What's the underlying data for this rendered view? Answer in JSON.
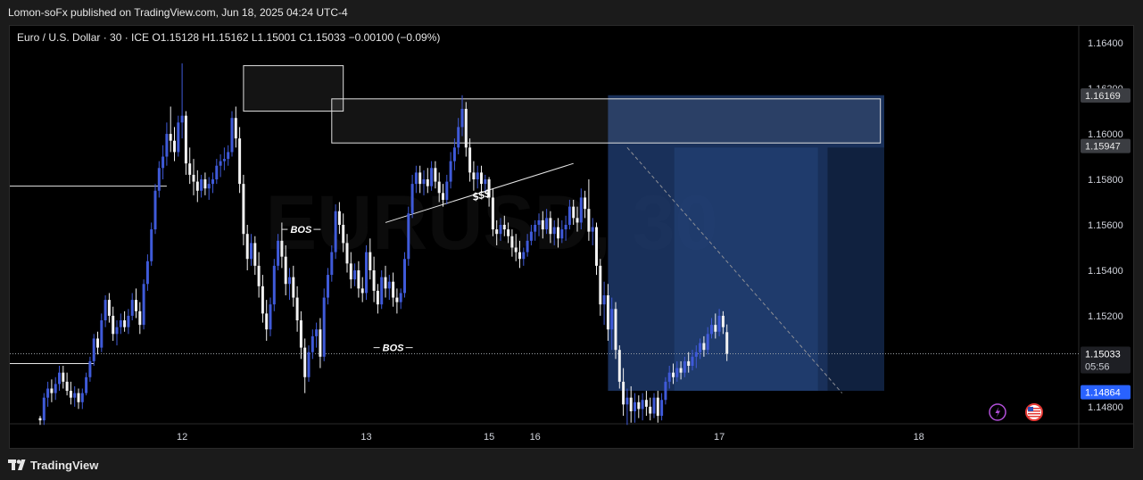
{
  "header": {
    "published_text": "Lomon-soFx published on TradingView.com, Jun 18, 2025 04:24 UTC-4"
  },
  "legend": {
    "symbol": "Euro / U.S. Dollar · 30 · ICE",
    "open": "O1.15128",
    "high": "H1.15162",
    "low": "L1.15001",
    "close": "C1.15033",
    "change": "−0.00100 (−0.09%)"
  },
  "watermark": "EURUSD, 30",
  "footer": {
    "brand": "TradingView"
  },
  "colors": {
    "bull": "#3f5ad9",
    "bear": "#f2f2f2",
    "background": "#000000",
    "zone": "#1e3a6e",
    "accent": "#2962ff"
  },
  "chart_data": {
    "type": "candlestick",
    "interval": "30",
    "y_axis": {
      "ticks": [
        1.164,
        1.162,
        1.16,
        1.158,
        1.156,
        1.154,
        1.152,
        1.148
      ],
      "tick_labels": [
        "1.16400",
        "1.16200",
        "1.16000",
        "1.15800",
        "1.15600",
        "1.15400",
        "1.15200",
        "1.14800"
      ],
      "range": [
        1.14725,
        1.16475
      ]
    },
    "x_axis": {
      "labels": [
        "12",
        "13",
        "15",
        "16",
        "17",
        "18"
      ],
      "label_bars": [
        37,
        85,
        117,
        129,
        177,
        229
      ]
    },
    "price_labels": [
      {
        "text": "1.16169",
        "value": 1.16169,
        "style": "grey"
      },
      {
        "text": "1.15947",
        "value": 1.15947,
        "style": "grey"
      },
      {
        "text": "1.15033",
        "value": 1.15033,
        "style": "current",
        "countdown": "05:56"
      },
      {
        "text": "1.14864",
        "value": 1.14864,
        "style": "blue"
      }
    ],
    "annotations": [
      {
        "type": "text",
        "text": "BOS",
        "bar": 68,
        "value": 1.1558
      },
      {
        "type": "text",
        "text": "BOS",
        "bar": 92,
        "value": 1.1506
      },
      {
        "type": "text",
        "text": "$$$",
        "bar": 115,
        "value": 1.1573
      },
      {
        "type": "trendline",
        "from": {
          "bar": 90,
          "value": 1.1561
        },
        "to": {
          "bar": 139,
          "value": 1.1587
        }
      },
      {
        "type": "trendline",
        "style": "dashed",
        "from": {
          "bar": 153,
          "value": 1.1594
        },
        "to": {
          "bar": 209,
          "value": 1.1486
        }
      },
      {
        "type": "rectangle",
        "from_bar": 53,
        "to_bar": 79,
        "top": 1.163,
        "bottom": 1.161
      },
      {
        "type": "rectangle",
        "from_bar": 76,
        "to_bar": 219,
        "top": 1.16154,
        "bottom": 1.1596
      },
      {
        "type": "zone",
        "from_bar": 148,
        "to_bar": 220,
        "top": 1.1617,
        "bottom": 1.1487
      },
      {
        "type": "hline",
        "from_bar": 0,
        "to_bar": 33,
        "value": 1.1577
      },
      {
        "type": "hline",
        "from_bar": 0,
        "to_bar": 14,
        "value": 1.1499
      },
      {
        "type": "hline",
        "style": "dotted",
        "from_bar": 0,
        "to_bar": 255,
        "value": 1.15033
      }
    ],
    "candles": [
      [
        1.1475,
        1.1476,
        1.1472,
        1.1474
      ],
      [
        1.1474,
        1.1486,
        1.1472,
        1.1484
      ],
      [
        1.1484,
        1.1491,
        1.148,
        1.1488
      ],
      [
        1.1488,
        1.1492,
        1.1482,
        1.1486
      ],
      [
        1.1486,
        1.1493,
        1.1483,
        1.149
      ],
      [
        1.149,
        1.1498,
        1.1487,
        1.1495
      ],
      [
        1.1495,
        1.1498,
        1.1488,
        1.1491
      ],
      [
        1.1491,
        1.1495,
        1.1485,
        1.1487
      ],
      [
        1.1487,
        1.1491,
        1.1481,
        1.1484
      ],
      [
        1.1484,
        1.1489,
        1.148,
        1.1486
      ],
      [
        1.1486,
        1.1488,
        1.1479,
        1.1482
      ],
      [
        1.1482,
        1.1488,
        1.1479,
        1.1486
      ],
      [
        1.1486,
        1.1495,
        1.1485,
        1.1493
      ],
      [
        1.1493,
        1.1502,
        1.1491,
        1.15
      ],
      [
        1.15,
        1.1512,
        1.1498,
        1.151
      ],
      [
        1.151,
        1.1513,
        1.1503,
        1.1506
      ],
      [
        1.1506,
        1.1521,
        1.1504,
        1.1518
      ],
      [
        1.1518,
        1.1529,
        1.1515,
        1.1527
      ],
      [
        1.1527,
        1.153,
        1.1517,
        1.152
      ],
      [
        1.152,
        1.1524,
        1.1509,
        1.1512
      ],
      [
        1.1512,
        1.1518,
        1.1507,
        1.1515
      ],
      [
        1.1515,
        1.1521,
        1.1512,
        1.1518
      ],
      [
        1.1518,
        1.1522,
        1.1513,
        1.1515
      ],
      [
        1.1515,
        1.1523,
        1.1512,
        1.152
      ],
      [
        1.152,
        1.153,
        1.1518,
        1.1527
      ],
      [
        1.1527,
        1.1532,
        1.1519,
        1.1522
      ],
      [
        1.1522,
        1.1526,
        1.1512,
        1.1516
      ],
      [
        1.1516,
        1.1536,
        1.1514,
        1.1534
      ],
      [
        1.1534,
        1.1547,
        1.1531,
        1.1544
      ],
      [
        1.1544,
        1.1561,
        1.1542,
        1.1558
      ],
      [
        1.1558,
        1.1578,
        1.1556,
        1.1575
      ],
      [
        1.1575,
        1.1588,
        1.1572,
        1.1585
      ],
      [
        1.1585,
        1.1595,
        1.158,
        1.159
      ],
      [
        1.159,
        1.1605,
        1.1586,
        1.16
      ],
      [
        1.16,
        1.1612,
        1.1592,
        1.1597
      ],
      [
        1.1597,
        1.1603,
        1.1588,
        1.1592
      ],
      [
        1.1592,
        1.1608,
        1.159,
        1.1605
      ],
      [
        1.1605,
        1.1631,
        1.1598,
        1.1608
      ],
      [
        1.1608,
        1.161,
        1.1582,
        1.1587
      ],
      [
        1.1587,
        1.1594,
        1.1578,
        1.1582
      ],
      [
        1.1582,
        1.1589,
        1.1573,
        1.1579
      ],
      [
        1.1579,
        1.1584,
        1.157,
        1.1575
      ],
      [
        1.1575,
        1.1582,
        1.1572,
        1.158
      ],
      [
        1.158,
        1.1583,
        1.1573,
        1.1576
      ],
      [
        1.1576,
        1.1581,
        1.1571,
        1.1578
      ],
      [
        1.1578,
        1.1583,
        1.1574,
        1.158
      ],
      [
        1.158,
        1.1589,
        1.1578,
        1.1586
      ],
      [
        1.1586,
        1.1591,
        1.1581,
        1.1588
      ],
      [
        1.1588,
        1.1594,
        1.1584,
        1.1589
      ],
      [
        1.1589,
        1.1595,
        1.1586,
        1.1592
      ],
      [
        1.1592,
        1.161,
        1.159,
        1.1607
      ],
      [
        1.1607,
        1.1612,
        1.1594,
        1.1598
      ],
      [
        1.1598,
        1.1603,
        1.1574,
        1.1578
      ],
      [
        1.1578,
        1.1582,
        1.1551,
        1.1556
      ],
      [
        1.1556,
        1.156,
        1.154,
        1.1545
      ],
      [
        1.1545,
        1.1556,
        1.1542,
        1.1552
      ],
      [
        1.1552,
        1.1555,
        1.1538,
        1.1542
      ],
      [
        1.1542,
        1.1548,
        1.1528,
        1.1533
      ],
      [
        1.1533,
        1.1538,
        1.1517,
        1.1521
      ],
      [
        1.1521,
        1.1527,
        1.1509,
        1.1514
      ],
      [
        1.1514,
        1.1528,
        1.1511,
        1.1525
      ],
      [
        1.1525,
        1.1545,
        1.1522,
        1.1542
      ],
      [
        1.1542,
        1.1556,
        1.154,
        1.1553
      ],
      [
        1.1553,
        1.1561,
        1.1541,
        1.1546
      ],
      [
        1.1546,
        1.1551,
        1.1529,
        1.1534
      ],
      [
        1.1534,
        1.1541,
        1.1527,
        1.1537
      ],
      [
        1.1537,
        1.1542,
        1.1524,
        1.1528
      ],
      [
        1.1528,
        1.1533,
        1.1513,
        1.1518
      ],
      [
        1.1518,
        1.1522,
        1.1501,
        1.1506
      ],
      [
        1.1506,
        1.151,
        1.1486,
        1.1493
      ],
      [
        1.1493,
        1.1507,
        1.1491,
        1.1504
      ],
      [
        1.1504,
        1.1514,
        1.1501,
        1.1511
      ],
      [
        1.1511,
        1.1517,
        1.1506,
        1.1514
      ],
      [
        1.1514,
        1.1519,
        1.1497,
        1.1502
      ],
      [
        1.1502,
        1.1532,
        1.15,
        1.1528
      ],
      [
        1.1528,
        1.1541,
        1.1525,
        1.1538
      ],
      [
        1.1538,
        1.1551,
        1.1535,
        1.1548
      ],
      [
        1.1548,
        1.1569,
        1.1545,
        1.1566
      ],
      [
        1.1566,
        1.157,
        1.1556,
        1.156
      ],
      [
        1.156,
        1.1565,
        1.1548,
        1.1552
      ],
      [
        1.1552,
        1.1556,
        1.1539,
        1.1543
      ],
      [
        1.1543,
        1.1548,
        1.1532,
        1.1536
      ],
      [
        1.1536,
        1.1543,
        1.1533,
        1.154
      ],
      [
        1.154,
        1.1544,
        1.1528,
        1.1532
      ],
      [
        1.1532,
        1.1537,
        1.1526,
        1.153
      ],
      [
        1.153,
        1.1551,
        1.1527,
        1.1548
      ],
      [
        1.1548,
        1.1554,
        1.1536,
        1.154
      ],
      [
        1.154,
        1.1546,
        1.1526,
        1.1531
      ],
      [
        1.1531,
        1.1534,
        1.1521,
        1.1525
      ],
      [
        1.1525,
        1.154,
        1.1523,
        1.1537
      ],
      [
        1.1537,
        1.1542,
        1.1528,
        1.1532
      ],
      [
        1.1532,
        1.1538,
        1.1527,
        1.1535
      ],
      [
        1.1535,
        1.1539,
        1.1524,
        1.1528
      ],
      [
        1.1528,
        1.1532,
        1.1521,
        1.1526
      ],
      [
        1.1526,
        1.1532,
        1.1523,
        1.153
      ],
      [
        1.153,
        1.1548,
        1.1528,
        1.1545
      ],
      [
        1.1545,
        1.1568,
        1.1542,
        1.1565
      ],
      [
        1.1565,
        1.1582,
        1.1563,
        1.1578
      ],
      [
        1.1578,
        1.1586,
        1.1574,
        1.1583
      ],
      [
        1.1583,
        1.1586,
        1.1574,
        1.1578
      ],
      [
        1.1578,
        1.1584,
        1.1573,
        1.158
      ],
      [
        1.158,
        1.1585,
        1.1574,
        1.1577
      ],
      [
        1.1577,
        1.1588,
        1.1575,
        1.1585
      ],
      [
        1.1585,
        1.1588,
        1.1576,
        1.1579
      ],
      [
        1.1579,
        1.1583,
        1.157,
        1.1574
      ],
      [
        1.1574,
        1.1578,
        1.1568,
        1.1571
      ],
      [
        1.1571,
        1.1582,
        1.1569,
        1.1579
      ],
      [
        1.1579,
        1.1592,
        1.1576,
        1.1588
      ],
      [
        1.1588,
        1.1598,
        1.1584,
        1.1594
      ],
      [
        1.1594,
        1.1607,
        1.1591,
        1.1603
      ],
      [
        1.1603,
        1.1617,
        1.1599,
        1.1611
      ],
      [
        1.1611,
        1.1614,
        1.159,
        1.1594
      ],
      [
        1.1594,
        1.1598,
        1.1579,
        1.1583
      ],
      [
        1.1583,
        1.1588,
        1.1575,
        1.158
      ],
      [
        1.158,
        1.1586,
        1.1576,
        1.1583
      ],
      [
        1.1583,
        1.1586,
        1.1574,
        1.1578
      ],
      [
        1.1578,
        1.1582,
        1.1574,
        1.158
      ],
      [
        1.158,
        1.1581,
        1.1568,
        1.1572
      ],
      [
        1.1572,
        1.1576,
        1.1555,
        1.1558
      ],
      [
        1.1558,
        1.1562,
        1.1551,
        1.1556
      ],
      [
        1.1556,
        1.1563,
        1.1553,
        1.156
      ],
      [
        1.156,
        1.1564,
        1.1555,
        1.1558
      ],
      [
        1.1558,
        1.1561,
        1.1552,
        1.1555
      ],
      [
        1.1555,
        1.1558,
        1.1546,
        1.155
      ],
      [
        1.155,
        1.1556,
        1.1544,
        1.1548
      ],
      [
        1.1548,
        1.1553,
        1.1541,
        1.1545
      ],
      [
        1.1545,
        1.155,
        1.1542,
        1.1548
      ],
      [
        1.1548,
        1.1556,
        1.1546,
        1.1553
      ],
      [
        1.1553,
        1.156,
        1.1551,
        1.1557
      ],
      [
        1.1557,
        1.1562,
        1.1553,
        1.156
      ],
      [
        1.156,
        1.1565,
        1.1555,
        1.1562
      ],
      [
        1.1562,
        1.1566,
        1.1554,
        1.1558
      ],
      [
        1.1558,
        1.1567,
        1.1556,
        1.1563
      ],
      [
        1.1563,
        1.1566,
        1.1552,
        1.1556
      ],
      [
        1.1556,
        1.1562,
        1.1551,
        1.1559
      ],
      [
        1.1559,
        1.1563,
        1.155,
        1.1554
      ],
      [
        1.1554,
        1.1562,
        1.1552,
        1.1558
      ],
      [
        1.1558,
        1.1564,
        1.1553,
        1.156
      ],
      [
        1.156,
        1.1571,
        1.1558,
        1.1568
      ],
      [
        1.1568,
        1.1571,
        1.156,
        1.1563
      ],
      [
        1.1563,
        1.1568,
        1.1557,
        1.1561
      ],
      [
        1.1561,
        1.1576,
        1.1558,
        1.1572
      ],
      [
        1.1572,
        1.1575,
        1.1563,
        1.1567
      ],
      [
        1.1567,
        1.158,
        1.1553,
        1.1557
      ],
      [
        1.1557,
        1.1563,
        1.1551,
        1.1559
      ],
      [
        1.1559,
        1.1561,
        1.1538,
        1.1542
      ],
      [
        1.1542,
        1.1545,
        1.152,
        1.1525
      ],
      [
        1.1525,
        1.1535,
        1.1516,
        1.1529
      ],
      [
        1.1529,
        1.1534,
        1.1509,
        1.1514
      ],
      [
        1.1514,
        1.1528,
        1.1505,
        1.1523
      ],
      [
        1.1523,
        1.1526,
        1.1501,
        1.1505
      ],
      [
        1.1505,
        1.1507,
        1.1488,
        1.1491
      ],
      [
        1.1491,
        1.1497,
        1.1476,
        1.1481
      ],
      [
        1.1481,
        1.1488,
        1.1472,
        1.1484
      ],
      [
        1.1484,
        1.1489,
        1.1473,
        1.1478
      ],
      [
        1.1478,
        1.1486,
        1.1473,
        1.1482
      ],
      [
        1.1482,
        1.1485,
        1.1475,
        1.1479
      ],
      [
        1.1479,
        1.1486,
        1.1474,
        1.1483
      ],
      [
        1.1483,
        1.1487,
        1.1476,
        1.148
      ],
      [
        1.148,
        1.1484,
        1.1474,
        1.1477
      ],
      [
        1.1477,
        1.1486,
        1.1475,
        1.1484
      ],
      [
        1.1484,
        1.1487,
        1.1473,
        1.1476
      ],
      [
        1.1476,
        1.1486,
        1.1474,
        1.1483
      ],
      [
        1.1483,
        1.1493,
        1.1481,
        1.1491
      ],
      [
        1.1491,
        1.1498,
        1.1488,
        1.1495
      ],
      [
        1.1495,
        1.1499,
        1.149,
        1.1493
      ],
      [
        1.1493,
        1.15,
        1.1491,
        1.1497
      ],
      [
        1.1497,
        1.15,
        1.1492,
        1.1495
      ],
      [
        1.1495,
        1.1502,
        1.1493,
        1.15
      ],
      [
        1.15,
        1.1504,
        1.1495,
        1.1498
      ],
      [
        1.1498,
        1.1505,
        1.1496,
        1.1502
      ],
      [
        1.1502,
        1.1507,
        1.1497,
        1.1504
      ],
      [
        1.1504,
        1.151,
        1.1501,
        1.1508
      ],
      [
        1.1508,
        1.1511,
        1.1502,
        1.1505
      ],
      [
        1.1505,
        1.1515,
        1.1503,
        1.1512
      ],
      [
        1.1512,
        1.1519,
        1.151,
        1.1516
      ],
      [
        1.1516,
        1.1521,
        1.151,
        1.1513
      ],
      [
        1.1513,
        1.1523,
        1.1511,
        1.152
      ],
      [
        1.152,
        1.1522,
        1.1512,
        1.1515
      ],
      [
        1.15128,
        1.15162,
        1.15001,
        1.15033
      ]
    ]
  }
}
